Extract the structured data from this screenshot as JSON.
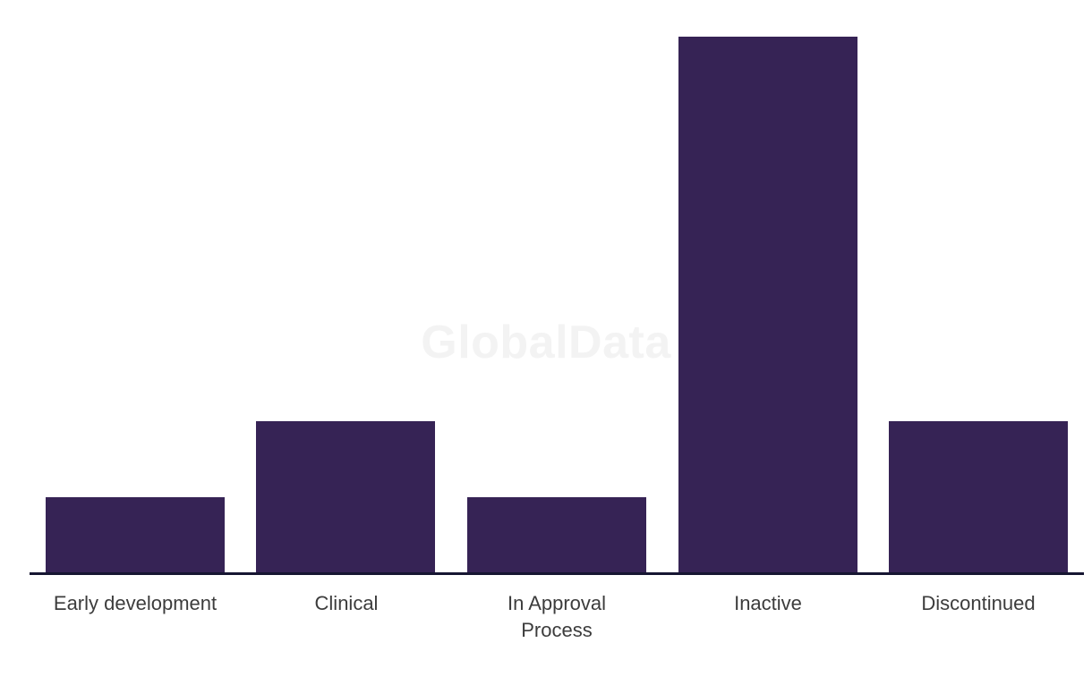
{
  "watermark": {
    "text": "GlobalData"
  },
  "chart_data": {
    "type": "bar",
    "title": "",
    "xlabel": "",
    "ylabel": "",
    "categories": [
      "Early development",
      "Clinical",
      "In Approval Process",
      "Inactive",
      "Discontinued"
    ],
    "tick_labels_display": [
      "Early development",
      "Clinical",
      "In Approval\nProcess",
      "Inactive",
      "Discontinued"
    ],
    "values": [
      14.2,
      28.3,
      14.2,
      100,
      28.3
    ],
    "values_unit": "relative bar height, % of tallest bar (no y-axis or data labels shown)",
    "ylim": [
      0,
      100
    ],
    "grid": false,
    "legend": false,
    "colors": {
      "bar": "#362355",
      "axis_line": "#161632",
      "tick_label": "#3c3c3c",
      "watermark": "#f3f3f3",
      "background": "#ffffff"
    }
  }
}
